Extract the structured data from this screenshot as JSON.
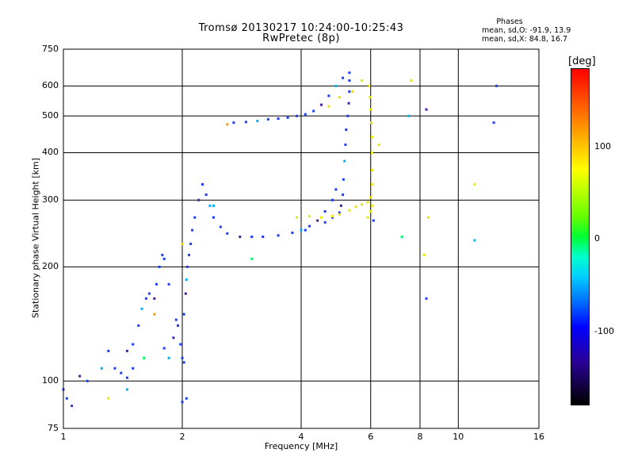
{
  "chart_data": {
    "type": "scatter",
    "title": "Tromsø 20130217 10:24:00-10:25:43",
    "subtitle": "RwPretec (8p)",
    "xlabel": "Frequency [MHz]",
    "ylabel": "Stationary phase Virtual Height [km]",
    "x_scale": "log",
    "y_scale": "log",
    "xlim": [
      1,
      16
    ],
    "ylim": [
      75,
      750
    ],
    "x_ticks": [
      1,
      2,
      4,
      6,
      8,
      10,
      16
    ],
    "y_ticks": [
      75,
      100,
      200,
      300,
      400,
      500,
      600,
      750
    ],
    "grid": true,
    "stats": {
      "heading": "Phases",
      "o_line": "mean, sd,O: -91.9, 13.9",
      "x_line": "mean, sd,X:  84.8, 16.7"
    },
    "colorbar": {
      "label": "[deg]",
      "ticks": [
        "100",
        "0",
        "-100"
      ],
      "range": [
        -180,
        180
      ]
    },
    "colors": {
      "o_mode": "#1a3cff",
      "x_mode": "#e8e800",
      "purple": "#4b1aa8",
      "cyan": "#00b0ff"
    },
    "series": [
      {
        "mode": "o",
        "phase_deg": -95,
        "points": [
          [
            1.0,
            95
          ],
          [
            1.02,
            90
          ],
          [
            1.05,
            86
          ],
          [
            1.1,
            103
          ],
          [
            1.15,
            100
          ],
          [
            1.25,
            108
          ],
          [
            1.3,
            120
          ],
          [
            1.35,
            108
          ],
          [
            1.4,
            105
          ],
          [
            1.45,
            102
          ],
          [
            1.45,
            120
          ],
          [
            1.5,
            108
          ],
          [
            1.5,
            125
          ],
          [
            1.55,
            140
          ],
          [
            1.58,
            155
          ],
          [
            1.62,
            165
          ],
          [
            1.65,
            170
          ],
          [
            1.7,
            165
          ],
          [
            1.72,
            180
          ],
          [
            1.75,
            200
          ],
          [
            1.78,
            215
          ],
          [
            1.8,
            210
          ],
          [
            1.8,
            122
          ],
          [
            1.85,
            115
          ],
          [
            1.9,
            130
          ],
          [
            1.93,
            145
          ],
          [
            1.95,
            140
          ],
          [
            1.98,
            125
          ],
          [
            2.0,
            115
          ],
          [
            2.02,
            112
          ],
          [
            2.02,
            150
          ],
          [
            2.04,
            170
          ],
          [
            2.05,
            185
          ],
          [
            2.06,
            200
          ],
          [
            2.08,
            215
          ],
          [
            2.1,
            230
          ],
          [
            2.12,
            250
          ],
          [
            2.15,
            270
          ],
          [
            2.2,
            300
          ],
          [
            2.25,
            330
          ],
          [
            2.3,
            310
          ],
          [
            2.35,
            290
          ],
          [
            2.4,
            270
          ],
          [
            2.5,
            255
          ],
          [
            2.6,
            245
          ],
          [
            2.8,
            240
          ],
          [
            3.0,
            240
          ],
          [
            3.2,
            240
          ],
          [
            3.5,
            242
          ],
          [
            3.8,
            246
          ],
          [
            4.0,
            250
          ],
          [
            4.2,
            256
          ],
          [
            4.4,
            265
          ],
          [
            4.6,
            280
          ],
          [
            4.8,
            300
          ],
          [
            4.9,
            320
          ],
          [
            4.1,
            250
          ],
          [
            2.7,
            480
          ],
          [
            2.9,
            482
          ],
          [
            3.1,
            485
          ],
          [
            3.3,
            490
          ],
          [
            3.5,
            492
          ],
          [
            3.7,
            495
          ],
          [
            3.9,
            500
          ],
          [
            4.1,
            505
          ],
          [
            4.3,
            515
          ],
          [
            4.5,
            535
          ],
          [
            4.7,
            565
          ],
          [
            4.9,
            600
          ],
          [
            5.1,
            630
          ],
          [
            5.3,
            650
          ],
          [
            5.3,
            620
          ],
          [
            5.3,
            580
          ],
          [
            5.28,
            540
          ],
          [
            5.25,
            500
          ],
          [
            5.2,
            460
          ],
          [
            5.18,
            420
          ],
          [
            5.15,
            380
          ],
          [
            5.12,
            340
          ],
          [
            5.1,
            310
          ],
          [
            5.05,
            290
          ],
          [
            5.0,
            278
          ],
          [
            4.8,
            270
          ],
          [
            4.6,
            262
          ],
          [
            2.05,
            90
          ],
          [
            2.0,
            88
          ],
          [
            7.5,
            500
          ],
          [
            8.3,
            520
          ],
          [
            12.5,
            600
          ],
          [
            12.3,
            480
          ],
          [
            8.3,
            165
          ]
        ]
      },
      {
        "mode": "x",
        "phase_deg": 85,
        "points": [
          [
            3.9,
            270
          ],
          [
            4.2,
            272
          ],
          [
            4.5,
            270
          ],
          [
            4.8,
            272
          ],
          [
            5.0,
            275
          ],
          [
            5.3,
            282
          ],
          [
            5.5,
            288
          ],
          [
            5.7,
            292
          ],
          [
            5.9,
            296
          ],
          [
            6.0,
            305
          ],
          [
            6.05,
            330
          ],
          [
            6.05,
            360
          ],
          [
            6.05,
            400
          ],
          [
            6.05,
            440
          ],
          [
            6.02,
            480
          ],
          [
            6.0,
            520
          ],
          [
            5.98,
            560
          ],
          [
            5.95,
            600
          ],
          [
            5.7,
            620
          ],
          [
            5.4,
            580
          ],
          [
            5.0,
            560
          ],
          [
            4.7,
            530
          ],
          [
            6.05,
            290
          ],
          [
            6.0,
            280
          ],
          [
            5.9,
            270
          ],
          [
            7.6,
            620
          ],
          [
            6.3,
            420
          ],
          [
            11.0,
            330
          ],
          [
            8.4,
            270
          ]
        ]
      },
      {
        "mode": "scatter",
        "phase_deg": 60,
        "points": [
          [
            1.3,
            90
          ],
          [
            1.45,
            95
          ],
          [
            1.6,
            115
          ],
          [
            1.7,
            150
          ],
          [
            1.85,
            180
          ],
          [
            2.0,
            230
          ],
          [
            2.4,
            290
          ],
          [
            3.0,
            210
          ],
          [
            2.6,
            475
          ],
          [
            6.1,
            265
          ],
          [
            8.2,
            215
          ],
          [
            11.0,
            235
          ],
          [
            7.2,
            240
          ]
        ]
      }
    ]
  }
}
